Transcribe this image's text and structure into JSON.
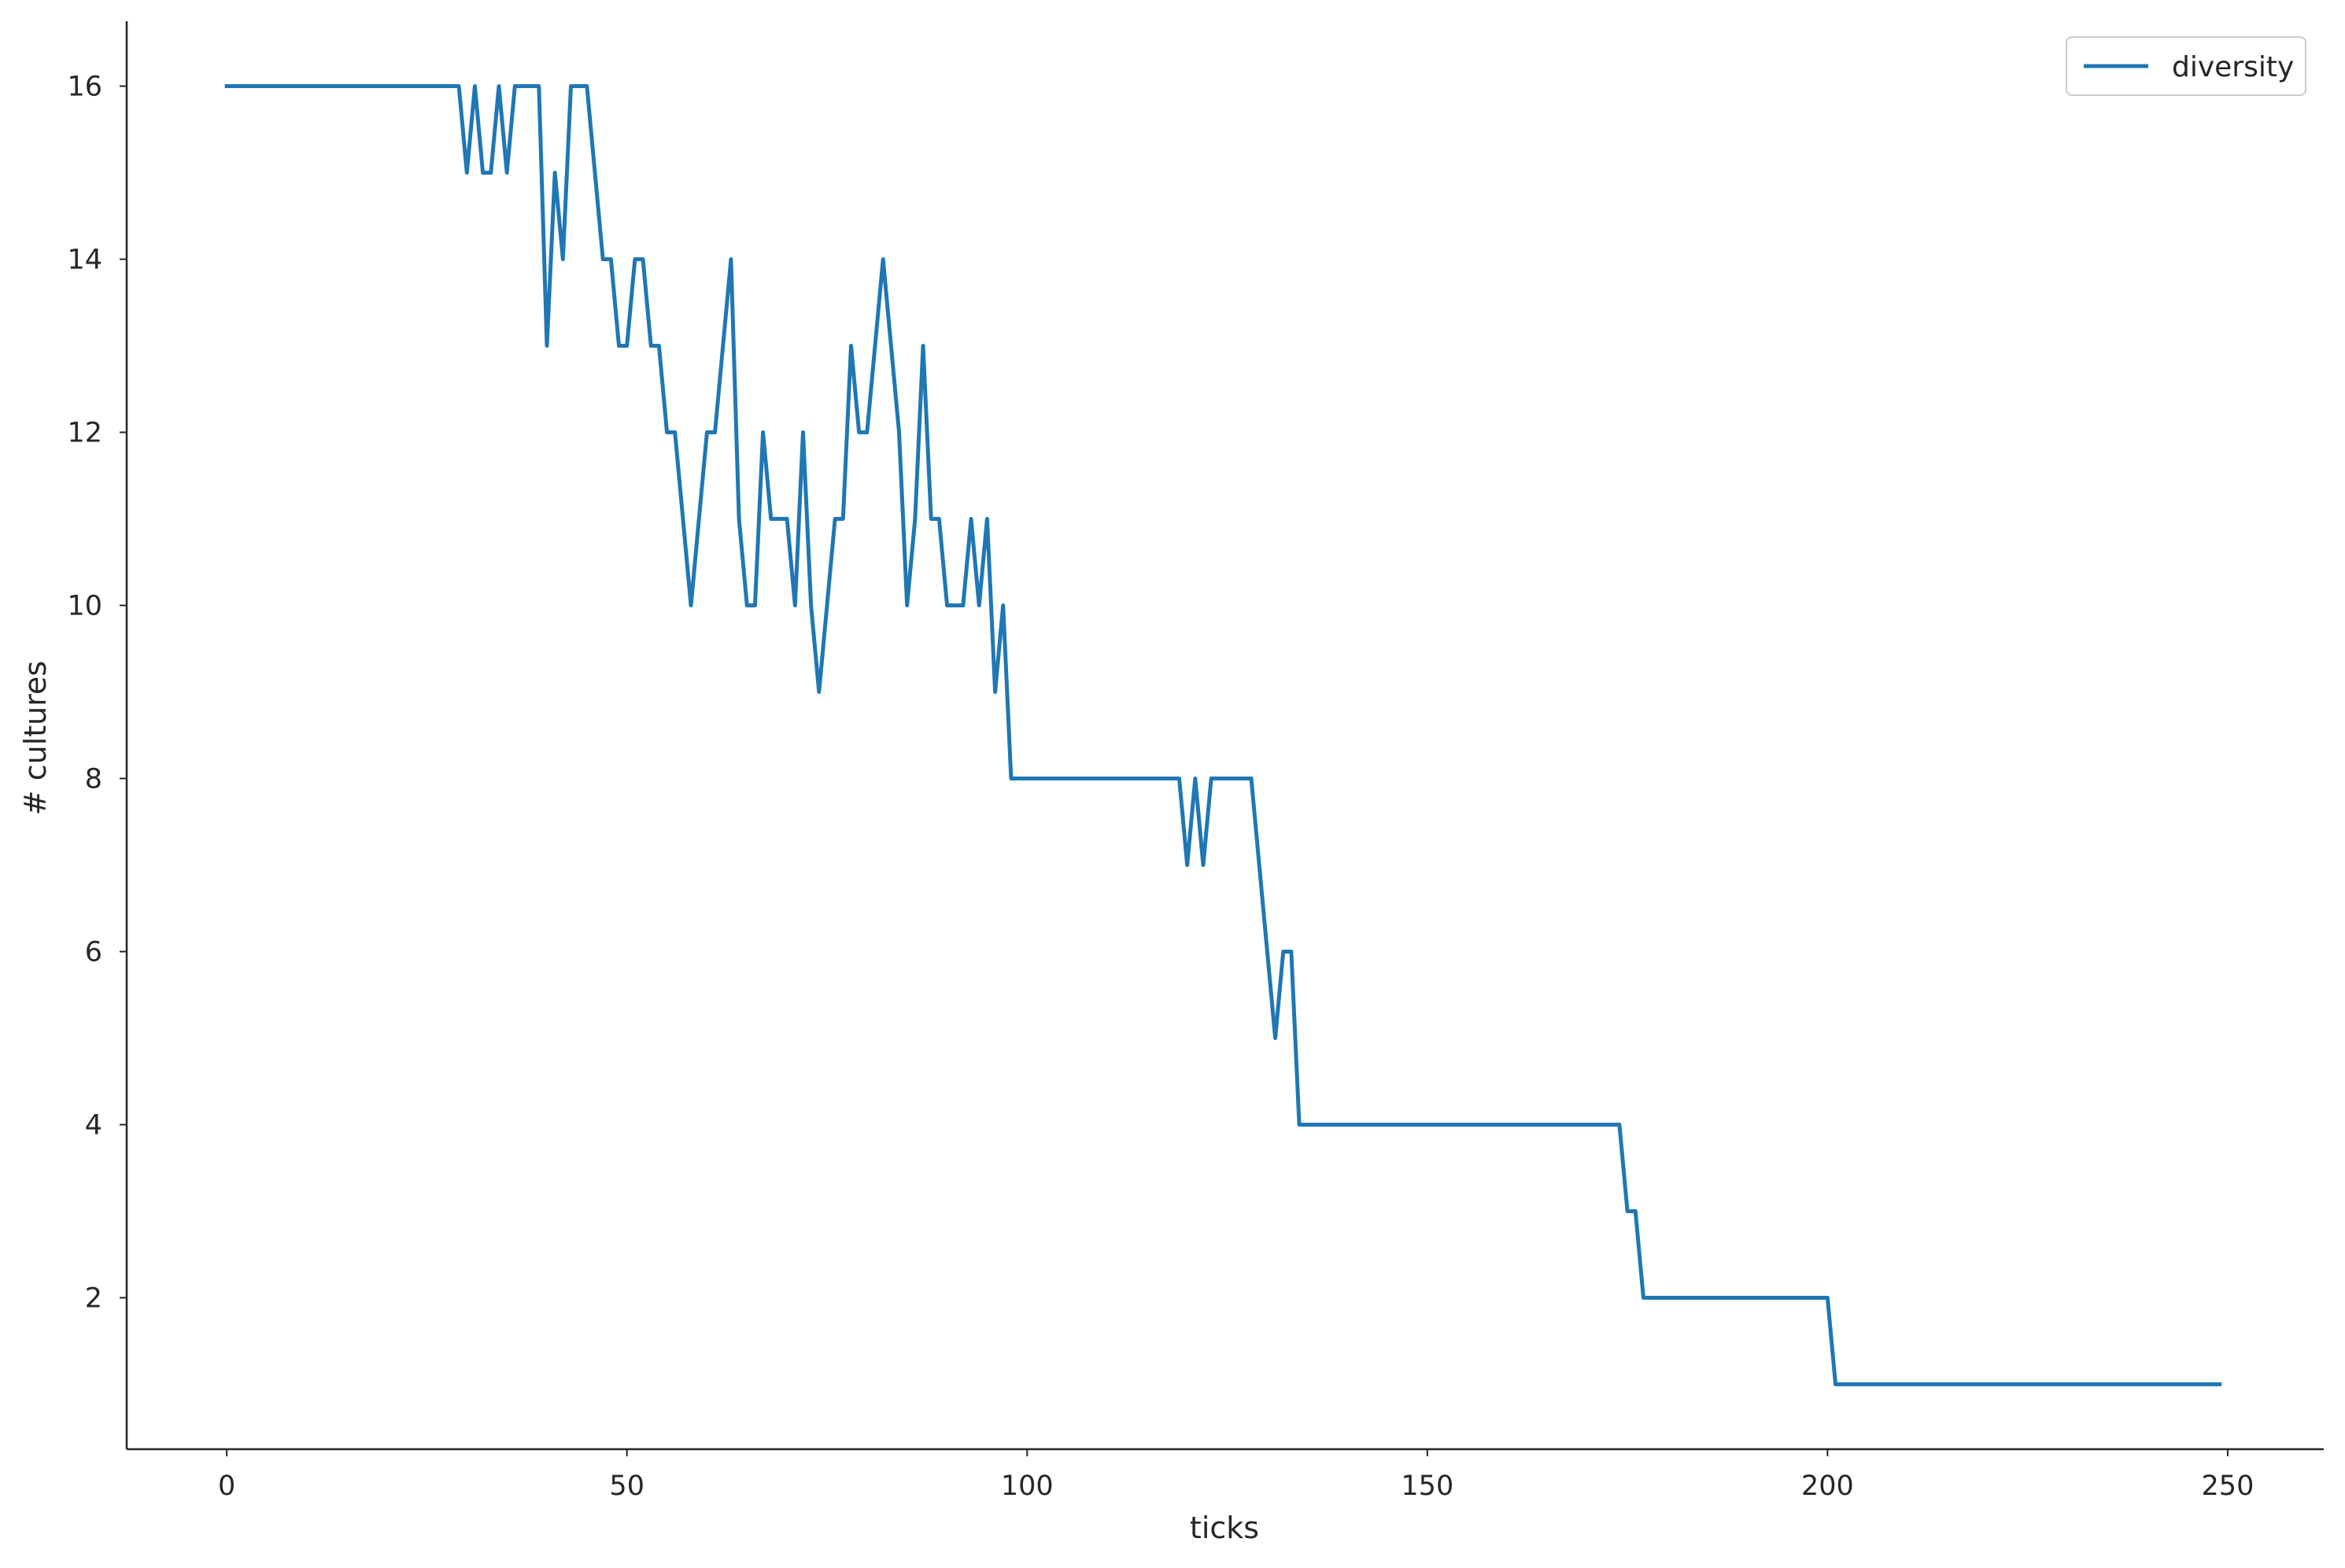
{
  "chart_data": {
    "type": "line",
    "title": "",
    "xlabel": "ticks",
    "ylabel": "# cultures",
    "xlim": [
      -12.5,
      262
    ],
    "ylim": [
      0.25,
      16.75
    ],
    "xticks": [
      0,
      50,
      100,
      150,
      200,
      250
    ],
    "yticks": [
      2,
      4,
      6,
      8,
      10,
      12,
      14,
      16
    ],
    "grid": false,
    "legend_position": "top-right",
    "line_color": "#1f77b4",
    "series": [
      {
        "name": "diversity",
        "x": [
          0,
          29,
          30,
          31,
          32,
          33,
          34,
          35,
          36,
          37,
          38,
          39,
          40,
          41,
          42,
          43,
          44,
          45,
          46,
          47,
          48,
          49,
          50,
          51,
          52,
          53,
          54,
          55,
          56,
          57,
          58,
          59,
          60,
          61,
          62,
          63,
          64,
          65,
          66,
          67,
          68,
          69,
          70,
          71,
          72,
          73,
          74,
          75,
          76,
          77,
          78,
          79,
          80,
          81,
          82,
          83,
          84,
          85,
          86,
          87,
          88,
          89,
          90,
          91,
          92,
          93,
          94,
          95,
          96,
          97,
          98,
          119,
          120,
          121,
          122,
          123,
          128,
          129,
          130,
          131,
          132,
          133,
          134,
          174,
          175,
          176,
          177,
          200,
          201,
          249
        ],
        "values": [
          16,
          16,
          15,
          16,
          15,
          15,
          16,
          15,
          16,
          16,
          16,
          16,
          13,
          15,
          14,
          16,
          16,
          16,
          15,
          14,
          14,
          13,
          13,
          14,
          14,
          13,
          13,
          12,
          12,
          11,
          10,
          11,
          12,
          12,
          13,
          14,
          11,
          10,
          10,
          12,
          11,
          11,
          11,
          10,
          12,
          10,
          9,
          10,
          11,
          11,
          13,
          12,
          12,
          13,
          14,
          13,
          12,
          10,
          11,
          13,
          11,
          11,
          10,
          10,
          10,
          11,
          10,
          11,
          9,
          10,
          8,
          8,
          7,
          8,
          7,
          8,
          8,
          7,
          6,
          5,
          6,
          6,
          4,
          4,
          3,
          3,
          2,
          2,
          1,
          1
        ]
      }
    ]
  }
}
